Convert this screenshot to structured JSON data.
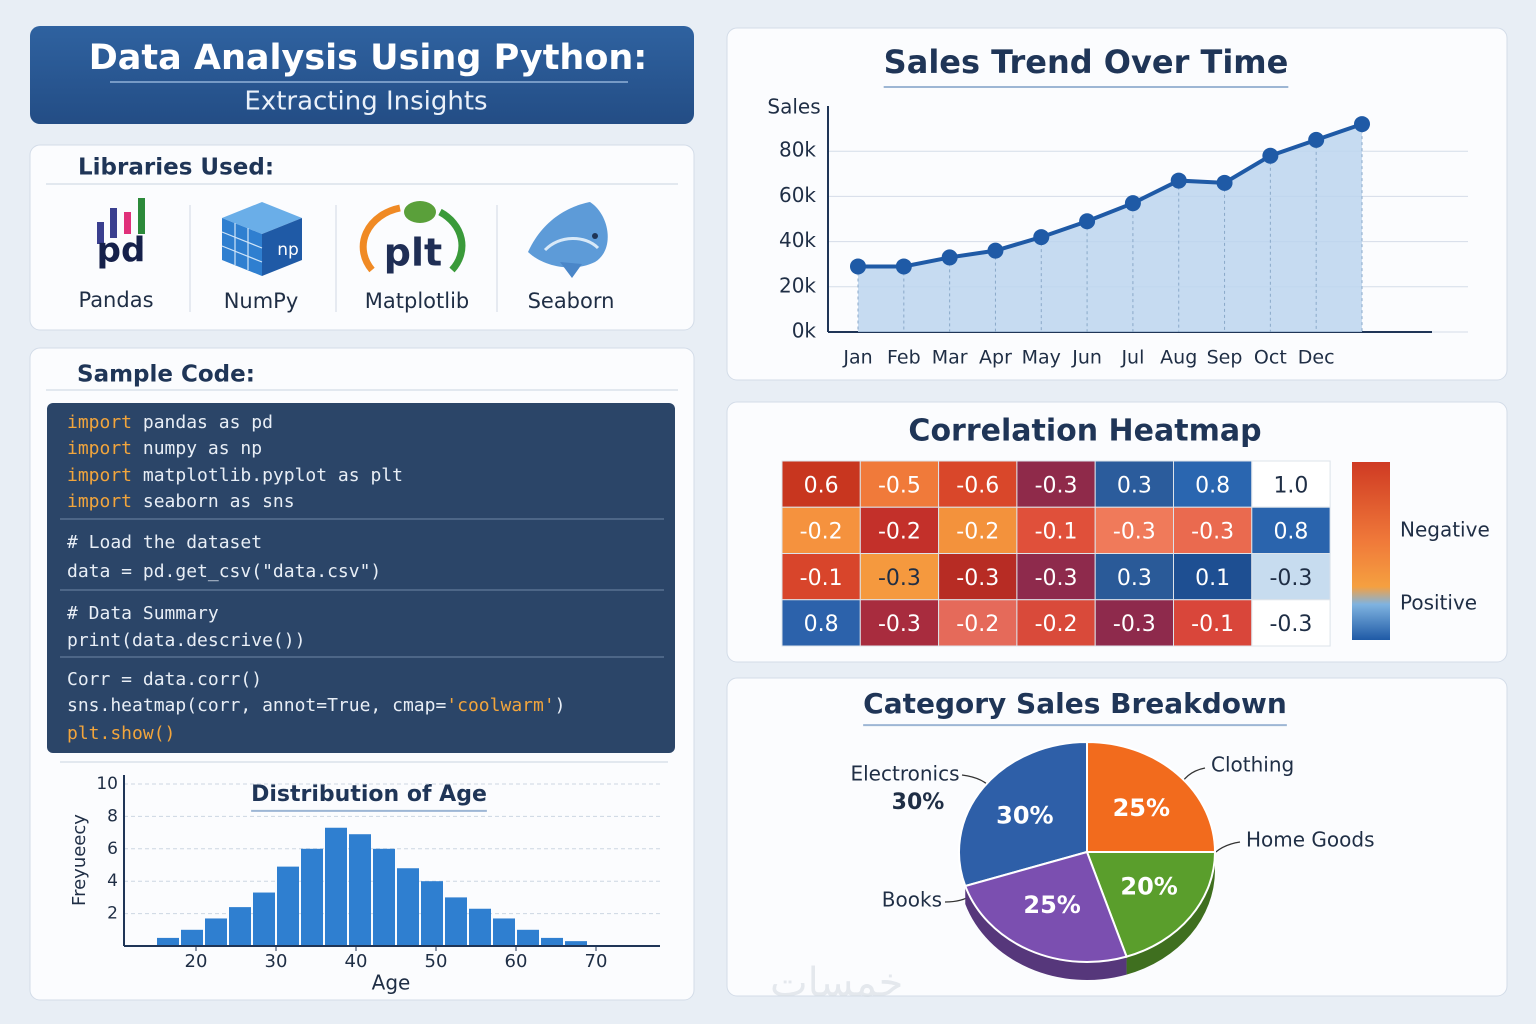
{
  "header": {
    "title": "Data Analysis Using Python:",
    "subtitle": "Extracting Insights"
  },
  "libraries": {
    "title": "Libraries Used:",
    "items": [
      {
        "name": "Pandas",
        "icon": "pd"
      },
      {
        "name": "NumPy",
        "icon": "np"
      },
      {
        "name": "Matplotlib",
        "icon": "plt"
      },
      {
        "name": "Seaborn"
      }
    ]
  },
  "code": {
    "title": "Sample Code:",
    "blocks": [
      [
        [
          {
            "text": "import",
            "color": "#f2a53c"
          },
          {
            "text": " pandas as pd"
          }
        ],
        [
          {
            "text": "import",
            "color": "#f2a53c"
          },
          {
            "text": " numpy as np"
          }
        ],
        [
          {
            "text": "import",
            "color": "#f2a53c"
          },
          {
            "text": " matplotlib.pyplot as plt"
          }
        ],
        [
          {
            "text": "import",
            "color": "#f2a53c"
          },
          {
            "text": " seaborn as sns"
          }
        ]
      ],
      [
        [
          {
            "text": "# Load the dataset"
          }
        ],
        [
          {
            "text": "data = pd.get_csv(\"data.csv\")"
          }
        ]
      ],
      [
        [
          {
            "text": "# Data Summary"
          }
        ],
        [
          {
            "text": "print(data.descrive())"
          }
        ]
      ],
      [
        [
          {
            "text": "Corr = data.corr()"
          }
        ],
        [
          {
            "text": "sns.heatmap(corr, annot=True, cmap="
          },
          {
            "text": "'coolwarm'",
            "color": "#f2a53c"
          },
          {
            "text": ")"
          }
        ],
        [
          {
            "text": "plt.show()",
            "color": "#f2a53c"
          }
        ]
      ]
    ]
  },
  "watermark": "خمسات",
  "chart_data": [
    {
      "type": "line",
      "title": "Sales Trend Over Time",
      "ylabel": "Sales",
      "categories": [
        "Jan",
        "Feb",
        "Mar",
        "Apr",
        "May",
        "Jun",
        "Jul",
        "Aug",
        "Sep",
        "Oct",
        "Dec",
        null
      ],
      "values": [
        29000,
        29000,
        33000,
        36000,
        42000,
        49000,
        57000,
        67000,
        66000,
        78000,
        85000,
        92000
      ],
      "color": "#1f5aa6",
      "fill": "#bcd5ee",
      "ylim": [
        0,
        100000
      ],
      "yticks": [
        {
          "value": 0,
          "label": "0k"
        },
        {
          "value": 20000,
          "label": "20k"
        },
        {
          "value": 40000,
          "label": "40k"
        },
        {
          "value": 60000,
          "label": "60k"
        },
        {
          "value": 80000,
          "label": "80k"
        }
      ],
      "grid": true
    },
    {
      "type": "heatmap",
      "title": "Correlation Heatmap",
      "values": [
        [
          0.6,
          -0.5,
          -0.6,
          -0.3,
          0.3,
          0.8,
          1
        ],
        [
          -0.2,
          -0.2,
          -0.2,
          -0.1,
          -0.3,
          -0.3,
          0.8
        ],
        [
          -0.1,
          -0.3,
          -0.3,
          -0.3,
          0.3,
          0.1,
          -0.3
        ],
        [
          0.8,
          -0.3,
          -0.2,
          -0.2,
          -0.3,
          -0.1,
          -0.3
        ]
      ],
      "value_labels": [
        [
          "0.6",
          "-0.5",
          "-0.6",
          "-0.3",
          "0.3",
          "0.8",
          "1.0"
        ],
        [
          "-0.2",
          "-0.2",
          "-0.2",
          "-0.1",
          "-0.3",
          "-0.3",
          "0.8"
        ],
        [
          "-0.1",
          "-0.3",
          "-0.3",
          "-0.3",
          "0.3",
          "0.1",
          "-0.3"
        ],
        [
          "0.8",
          "-0.3",
          "-0.2",
          "-0.2",
          "-0.3",
          "-0.1",
          "-0.3"
        ]
      ],
      "colors": [
        [
          "#c8361f",
          "#f07a3a",
          "#d9472a",
          "#8f2a4a",
          "#2b5c9c",
          "#2a66b0",
          "#ffffff"
        ],
        [
          "#f5923e",
          "#c3302a",
          "#f3923c",
          "#e0503a",
          "#f07a5a",
          "#ea6a4f",
          "#2a64ad"
        ],
        [
          "#d8452b",
          "#f5993e",
          "#b72c24",
          "#8e2a4c",
          "#2a5a98",
          "#1e4f92",
          "#c7dcef"
        ],
        [
          "#2c62ab",
          "#a82c3e",
          "#e56a5a",
          "#d94a3a",
          "#8e2a4c",
          "#d9463a",
          "#ffffff"
        ]
      ],
      "legend": [
        "Negative",
        "Positive"
      ]
    },
    {
      "type": "pie",
      "title": "Category Sales Breakdown",
      "categories": [
        "Electronics",
        "Clothing",
        "Home Goods",
        "Books"
      ],
      "values": [
        30,
        25,
        20,
        25
      ],
      "value_labels": [
        "30%",
        "25%",
        "20%",
        "25%"
      ],
      "colors": [
        "#2e5fa8",
        "#f26b1d",
        "#5a9e2c",
        "#7b4fb0"
      ]
    },
    {
      "type": "histogram",
      "title": "Distribution of Age",
      "xlabel": "Age",
      "ylabel": "Freyueecy",
      "bins": [
        15,
        18,
        21,
        24,
        27,
        30,
        33,
        36,
        39,
        42,
        45,
        48,
        51,
        54,
        57,
        60,
        63,
        66,
        69
      ],
      "values": [
        0.5,
        1.0,
        1.7,
        2.4,
        3.3,
        4.9,
        6.0,
        7.3,
        6.9,
        6.0,
        4.8,
        4.0,
        3.0,
        2.3,
        1.7,
        1.0,
        0.5,
        0.3
      ],
      "color": "#2f7fd0",
      "xlim": [
        11,
        78
      ],
      "xticks": [
        20,
        30,
        40,
        50,
        60,
        70
      ],
      "ylim": [
        0,
        10
      ],
      "yticks": [
        2,
        4,
        6,
        8,
        10
      ],
      "grid": true
    }
  ]
}
